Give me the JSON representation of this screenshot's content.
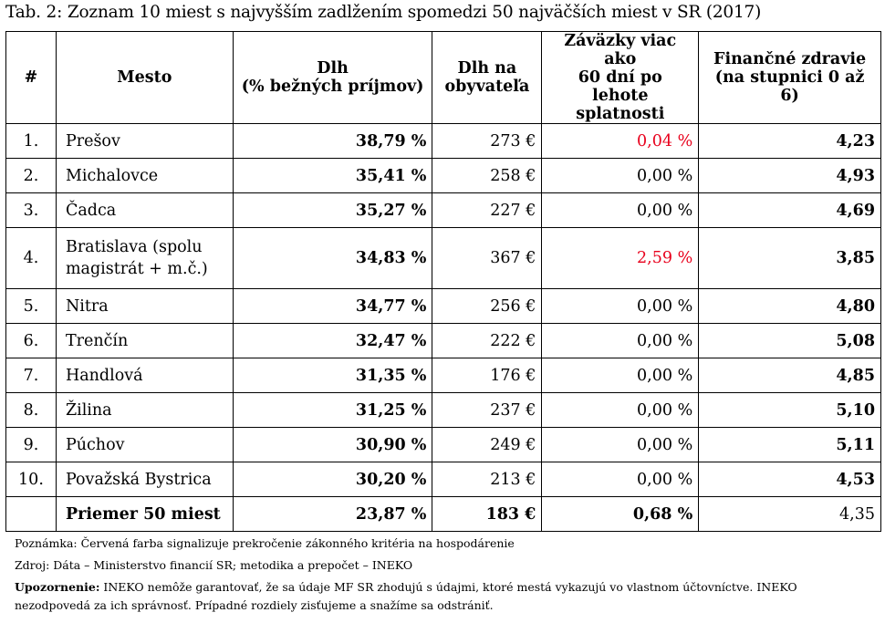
{
  "caption": "Tab. 2: Zoznam 10 miest s najvyšším zadlžením spomedzi 50 najväčších miest v SR (2017)",
  "colors": {
    "exceed_red": "#e8001c"
  },
  "headers": {
    "rank": "#",
    "city": "Mesto",
    "debt_l1": "Dlh",
    "debt_l2": "(% bežných príjmov)",
    "per_cap_l1": "Dlh na",
    "per_cap_l2": "obyvateľa",
    "overdue_l1": "Záväzky viac ako",
    "overdue_l2": "60 dní po lehote",
    "overdue_l3": "splatnosti",
    "health_l1": "Finančné zdravie",
    "health_l2": "(na stupnici 0 až 6)"
  },
  "rows": [
    {
      "rank": "1.",
      "city": "Prešov",
      "debt": "38,79 %",
      "per_capita": "273 €",
      "overdue": "0,04 %",
      "health": "4,23"
    },
    {
      "rank": "2.",
      "city": "Michalovce",
      "debt": "35,41 %",
      "per_capita": "258 €",
      "overdue": "0,00 %",
      "health": "4,93"
    },
    {
      "rank": "3.",
      "city": "Čadca",
      "debt": "35,27 %",
      "per_capita": "227 €",
      "overdue": "0,00 %",
      "health": "4,69"
    },
    {
      "rank": "4.",
      "city_l1": "Bratislava (spolu",
      "city_l2": "magistrát + m.č.)",
      "debt": "34,83 %",
      "per_capita": "367 €",
      "overdue": "2,59 %",
      "health": "3,85"
    },
    {
      "rank": "5.",
      "city": "Nitra",
      "debt": "34,77 %",
      "per_capita": "256 €",
      "overdue": "0,00 %",
      "health": "4,80"
    },
    {
      "rank": "6.",
      "city": "Trenčín",
      "debt": "32,47 %",
      "per_capita": "222 €",
      "overdue": "0,00 %",
      "health": "5,08"
    },
    {
      "rank": "7.",
      "city": "Handlová",
      "debt": "31,35 %",
      "per_capita": "176 €",
      "overdue": "0,00 %",
      "health": "4,85"
    },
    {
      "rank": "8.",
      "city": "Žilina",
      "debt": "31,25 %",
      "per_capita": "237 €",
      "overdue": "0,00 %",
      "health": "5,10"
    },
    {
      "rank": "9.",
      "city": "Púchov",
      "debt": "30,90 %",
      "per_capita": "249 €",
      "overdue": "0,00 %",
      "health": "5,11"
    },
    {
      "rank": "10.",
      "city": "Považská Bystrica",
      "debt": "30,20 %",
      "per_capita": "213 €",
      "overdue": "0,00 %",
      "health": "4,53"
    }
  ],
  "average": {
    "rank": "",
    "city": "Priemer 50 miest",
    "debt": "23,87 %",
    "per_capita": "183 €",
    "overdue": "0,68 %",
    "health": "4,35"
  },
  "notes": {
    "note": "Poznámka: Červená farba signalizuje prekročenie zákonného kritéria na hospodárenie",
    "source": "Zdroj: Dáta – Ministerstvo financií SR; metodika a prepočet – INEKO",
    "warning_label": "Upozornenie:",
    "warning_text": " INEKO nemôže garantovať, že sa údaje MF SR zhodujú s údajmi, ktoré mestá vykazujú vo vlastnom účtovníctve. INEKO",
    "warning_text2": "nezodpovedá za ich správnosť. Prípadné rozdiely zisťujeme a snažíme sa odstrániť."
  }
}
